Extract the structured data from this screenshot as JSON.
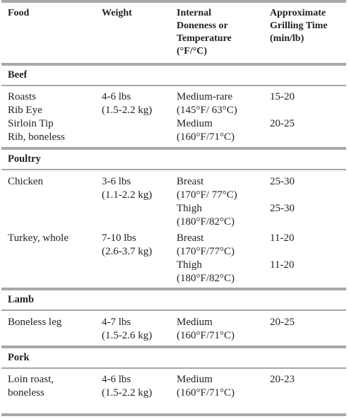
{
  "headers": {
    "food": "Food",
    "weight": "Weight",
    "doneness": [
      "Internal",
      "Doneness or",
      "Temperature",
      "(°F/°C)"
    ],
    "time": [
      "Approximate",
      "Grilling Time",
      "(min/lb)"
    ]
  },
  "sections": [
    {
      "name": "Beef",
      "food": [
        "Roasts",
        "Rib Eye",
        "Sirloin Tip",
        "Rib, boneless"
      ],
      "weight": [
        "4-6 lbs",
        "(1.5-2.2 kg)"
      ],
      "doneness": [
        "Medium-rare",
        "(145°F/ 63°C)",
        "Medium",
        "(160°F/71°C)"
      ],
      "time": [
        "15-20",
        "20-25"
      ]
    },
    {
      "name": "Poultry",
      "rows": [
        {
          "food": [
            "Chicken"
          ],
          "weight": [
            "3-6 lbs",
            "(1.1-2.2 kg)"
          ],
          "doneness": [
            "Breast",
            "(170°F/ 77°C)",
            "Thigh",
            "(180°F/82°C)"
          ],
          "time": [
            "25-30",
            "25-30"
          ]
        },
        {
          "food": [
            "Turkey, whole"
          ],
          "weight": [
            "7-10 lbs",
            "(2.6-3.7 kg)"
          ],
          "doneness": [
            "Breast",
            "(170°F/77°C)",
            "Thigh",
            "(180°F/82°C)"
          ],
          "time": [
            "11-20",
            "11-20"
          ]
        }
      ]
    },
    {
      "name": "Lamb",
      "food": [
        "Boneless leg"
      ],
      "weight": [
        "4-7 lbs",
        "(1.5-2.6 kg)"
      ],
      "doneness": [
        "Medium",
        "(160°F/71°C)"
      ],
      "time": [
        "20-25"
      ]
    },
    {
      "name": "Pork",
      "food": [
        "Loin roast,",
        "boneless"
      ],
      "weight": [
        "4-6 lbs",
        "(1.5-2.2 kg)"
      ],
      "doneness": [
        "Medium",
        "(160°F/71°C)"
      ],
      "time": [
        "20-23"
      ]
    }
  ]
}
